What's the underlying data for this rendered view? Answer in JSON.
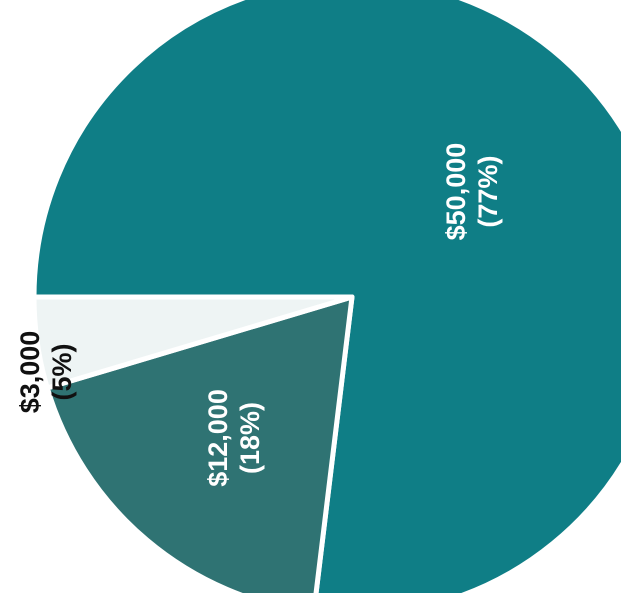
{
  "chart_data": {
    "type": "pie",
    "title": "",
    "slices": [
      {
        "value": 50000,
        "percent": 77,
        "label_value": "$50,000",
        "label_percent": "(77%)",
        "color": "#0f7e86",
        "label_color": "#ffffff"
      },
      {
        "value": 12000,
        "percent": 18,
        "label_value": "$12,000",
        "label_percent": "(18%)",
        "color": "#2f7373",
        "label_color": "#ffffff"
      },
      {
        "value": 3000,
        "percent": 5,
        "label_value": "$3,000",
        "label_percent": "(5%)",
        "color": "#eef4f4",
        "label_color": "#111111"
      }
    ],
    "legend": "none",
    "orientation": "labels rotated 90° counter-clockwise"
  }
}
